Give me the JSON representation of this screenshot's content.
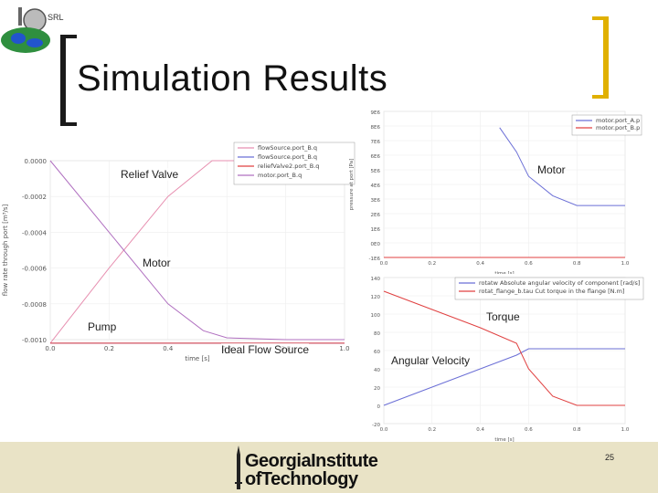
{
  "slide": {
    "title": "Simulation Results",
    "logo_text": "SRL",
    "page_number": "25",
    "institution_line1": "GeorgiaInstitute",
    "institution_line2": "ofTechnology"
  },
  "annotations": {
    "relief_valve": "Relief Valve",
    "motor_left": "Motor",
    "pump": "Pump",
    "ideal_flow_source": "Ideal Flow Source",
    "motor_right": "Motor",
    "torque": "Torque",
    "angular_velocity": "Angular Velocity"
  },
  "colors": {
    "accent_bracket": "#e0b000",
    "footer_bg": "#e9e3c6",
    "series_pink": "#e78fb0",
    "series_blue": "#6b6fd6",
    "series_red": "#e04040",
    "series_purple": "#b070c0"
  },
  "chart_data": [
    {
      "type": "line",
      "xlabel": "time [s]",
      "ylabel": "flow rate through port [m³/s]",
      "xlim": [
        0.0,
        1.0
      ],
      "ylim": [
        -0.001,
        0.0
      ],
      "x_ticks": [
        "0.0",
        "0.2",
        "0.4",
        "0.6",
        "0.8",
        "1.0"
      ],
      "y_ticks": [
        "0.0000",
        "-0.0002",
        "-0.0004",
        "-0.0006",
        "-0.0008",
        "-0.0010"
      ],
      "series": [
        {
          "name": "flowSource.port_B.q",
          "color": "#e78fb0",
          "x": [
            0.0,
            0.2,
            0.4,
            0.55,
            0.6,
            1.0
          ],
          "y": [
            -0.00102,
            -0.0006,
            -0.0002,
            0.0,
            0.0,
            0.0
          ]
        },
        {
          "name": "flowSource.port_B.q",
          "color": "#6b6fd6",
          "x": [
            0.0,
            0.2,
            0.4,
            0.5,
            0.6,
            1.0
          ],
          "y": [
            -0.00102,
            -0.00102,
            -0.00102,
            -0.00102,
            -0.00102,
            -0.00102
          ]
        },
        {
          "name": "reliefValve2.port_B.q",
          "color": "#e04040",
          "x": [
            0.0,
            1.0
          ],
          "y": [
            -0.00102,
            -0.00102
          ]
        },
        {
          "name": "motor.port_B.q",
          "color": "#b070c0",
          "x": [
            0.0,
            0.2,
            0.4,
            0.52,
            0.6,
            0.8,
            1.0
          ],
          "y": [
            0.0,
            -0.0004,
            -0.0008,
            -0.00095,
            -0.00099,
            -0.001,
            -0.001
          ]
        }
      ]
    },
    {
      "type": "line",
      "xlabel": "time [s]",
      "ylabel": "pressure at port [Pa]",
      "xlim": [
        0.0,
        1.0
      ],
      "ylim": [
        0,
        9000000.0
      ],
      "x_ticks": [
        "0.0",
        "0.2",
        "0.4",
        "0.6",
        "0.8",
        "1.0"
      ],
      "y_ticks": [
        "9E6",
        "8E6",
        "7E6",
        "6E6",
        "5E6",
        "4E6",
        "3E6",
        "2E6",
        "1E6",
        "0E0",
        "-1E6"
      ],
      "series": [
        {
          "name": "motor.port_A.p",
          "color": "#6b6fd6",
          "x": [
            0.48,
            0.55,
            0.6,
            0.7,
            0.8,
            1.0
          ],
          "y": [
            8000000.0,
            6500000.0,
            5000000.0,
            3800000.0,
            3200000.0,
            3200000.0
          ]
        },
        {
          "name": "motor.port_B.p",
          "color": "#e04040",
          "x": [
            0.0,
            1.0
          ],
          "y": [
            0.0,
            0.0
          ]
        }
      ]
    },
    {
      "type": "line",
      "xlabel": "time [s]",
      "ylabel": "",
      "xlim": [
        0.0,
        1.0
      ],
      "ylim": [
        -20,
        140
      ],
      "x_ticks": [
        "0.0",
        "0.2",
        "0.4",
        "0.6",
        "0.8",
        "1.0"
      ],
      "y_ticks": [
        "140",
        "120",
        "100",
        "80",
        "60",
        "40",
        "20",
        "0",
        "-20"
      ],
      "series": [
        {
          "name": "rotatw  Absolute angular velocity of component [rad/s]",
          "color": "#6b6fd6",
          "x": [
            0.0,
            0.2,
            0.4,
            0.55,
            0.6,
            0.8,
            1.0
          ],
          "y": [
            0,
            20,
            40,
            55,
            62,
            62,
            62
          ]
        },
        {
          "name": "rotat_flange_b.tau  Cut torque in the flange [N.m]",
          "color": "#e04040",
          "x": [
            0.0,
            0.2,
            0.4,
            0.55,
            0.6,
            0.7,
            0.8,
            1.0
          ],
          "y": [
            125,
            105,
            85,
            68,
            40,
            10,
            0,
            0
          ]
        }
      ]
    }
  ]
}
